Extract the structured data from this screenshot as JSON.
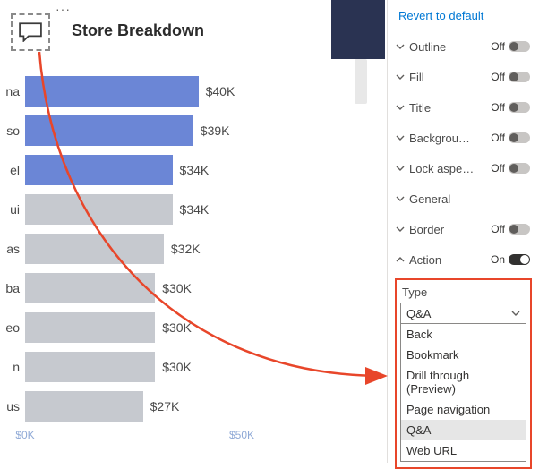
{
  "chart": {
    "title": "Store Breakdown",
    "type": "bar",
    "highlight_color": "#6b86d6",
    "dim_color": "#c6c9cf",
    "label_color": "#4a4a4a",
    "axis_color": "#8fa9d6",
    "bars": [
      {
        "cat": "na",
        "value": 40,
        "label": "$40K",
        "pct": 100,
        "hl": true
      },
      {
        "cat": "so",
        "value": 39,
        "label": "$39K",
        "pct": 97,
        "hl": true
      },
      {
        "cat": "el",
        "value": 34,
        "label": "$34K",
        "pct": 85,
        "hl": true
      },
      {
        "cat": "ui",
        "value": 34,
        "label": "$34K",
        "pct": 85,
        "hl": false
      },
      {
        "cat": "as",
        "value": 32,
        "label": "$32K",
        "pct": 80,
        "hl": false
      },
      {
        "cat": "ba",
        "value": 30,
        "label": "$30K",
        "pct": 75,
        "hl": false
      },
      {
        "cat": "eo",
        "value": 30,
        "label": "$30K",
        "pct": 75,
        "hl": false
      },
      {
        "cat": "n",
        "value": 30,
        "label": "$30K",
        "pct": 75,
        "hl": false
      },
      {
        "cat": "us",
        "value": 27,
        "label": "$27K",
        "pct": 68,
        "hl": false
      }
    ],
    "axis_ticks": [
      {
        "label": "$0K",
        "pct": 0
      },
      {
        "label": "$50K",
        "pct": 125
      }
    ]
  },
  "pane": {
    "revert_label": "Revert to default",
    "off_label": "Off",
    "on_label": "On",
    "rows": [
      {
        "label": "Outline",
        "expanded": false,
        "toggle": "off"
      },
      {
        "label": "Fill",
        "expanded": false,
        "toggle": "off"
      },
      {
        "label": "Title",
        "expanded": false,
        "toggle": "off"
      },
      {
        "label": "Backgrou…",
        "expanded": false,
        "toggle": "off"
      },
      {
        "label": "Lock aspe…",
        "expanded": false,
        "toggle": "off"
      },
      {
        "label": "General",
        "expanded": false,
        "toggle": null
      },
      {
        "label": "Border",
        "expanded": false,
        "toggle": "off"
      },
      {
        "label": "Action",
        "expanded": true,
        "toggle": "on"
      }
    ],
    "type_label": "Type",
    "type_selected": "Q&A",
    "type_options": [
      "Back",
      "Bookmark",
      "Drill through (Preview)",
      "Page navigation",
      "Q&A",
      "Web URL"
    ]
  },
  "annotation": {
    "arrow_color": "#e8462a"
  }
}
